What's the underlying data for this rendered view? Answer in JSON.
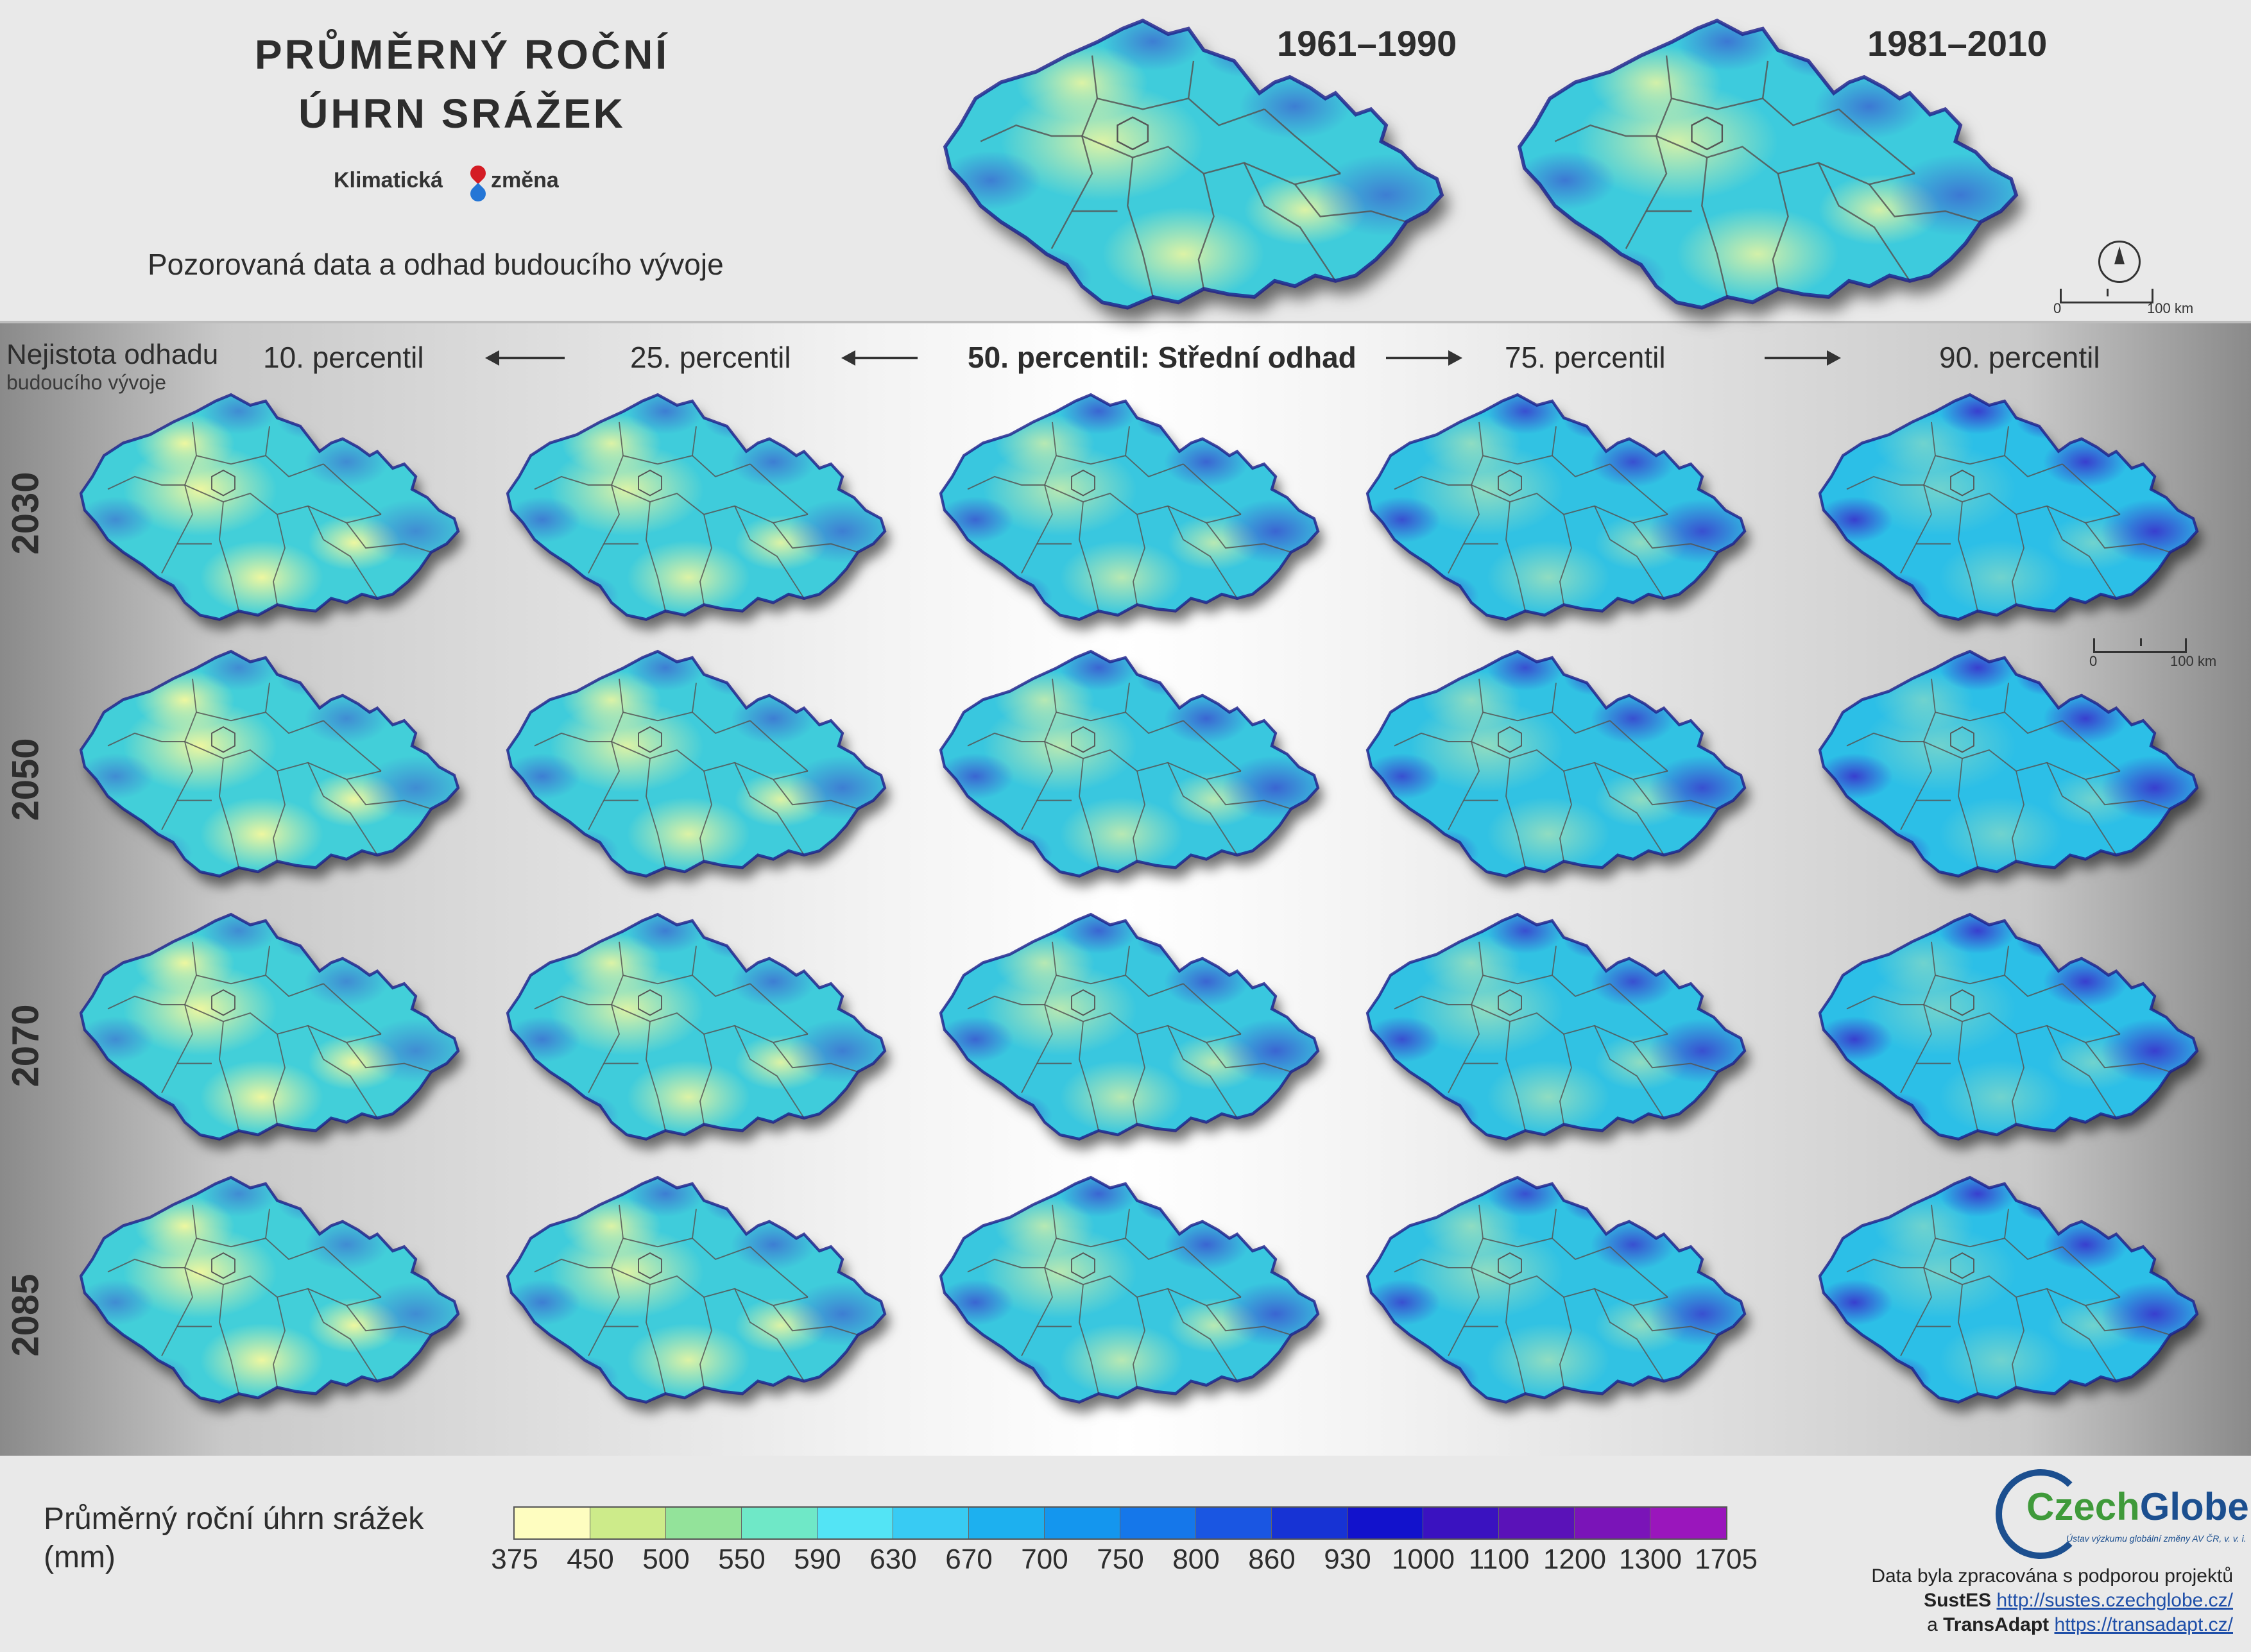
{
  "header": {
    "title_line1": "PRŮMĚRNÝ ROČNÍ",
    "title_line2": "ÚHRN SRÁŽEK",
    "logo_word1": "Klimatická",
    "logo_word2": "změna",
    "subtitle": "Pozorovaná data a odhad budoucího vývoje"
  },
  "observed": [
    {
      "period": "1961–1990",
      "style": "obs1"
    },
    {
      "period": "1981–2010",
      "style": "obs2"
    }
  ],
  "scalebar": {
    "start": "0",
    "end": "100 km"
  },
  "uncertainty": {
    "line1": "Nejistota odhadu",
    "line2": "budoucího vývoje"
  },
  "percentiles": [
    {
      "label": "10. percentil",
      "style": "p10"
    },
    {
      "label": "25. percentil",
      "style": "p25"
    },
    {
      "label": "50. percentil: Střední odhad",
      "style": "p50"
    },
    {
      "label": "75. percentil",
      "style": "p75"
    },
    {
      "label": "90. percentil",
      "style": "p90"
    }
  ],
  "years": [
    "2030",
    "2050",
    "2070",
    "2085"
  ],
  "legend": {
    "title": "Průměrný roční úhrn srážek",
    "unit": "(mm)",
    "breaks": [
      "375",
      "450",
      "500",
      "550",
      "590",
      "630",
      "670",
      "700",
      "750",
      "800",
      "860",
      "930",
      "1000",
      "1100",
      "1200",
      "1300",
      "1705"
    ],
    "colors": [
      "#fefdc0",
      "#cdeb8a",
      "#93e39a",
      "#6fe8c7",
      "#53e4f5",
      "#38cbf3",
      "#1db0ef",
      "#1496ee",
      "#1577ea",
      "#1a56e2",
      "#1733d4",
      "#1212cc",
      "#3a12c0",
      "#5a12b8",
      "#7a14b8",
      "#9a16bc"
    ]
  },
  "footer": {
    "org_part1": "Czech",
    "org_part2": "Globe",
    "org_institute": "Ústav výzkumu globální změny AV ČR, v. v. i.",
    "line1": "Data byla zpracována s podporou projektů",
    "project1_name": "SustES",
    "project1_url": "http://sustes.czechglobe.cz/",
    "connector": "a",
    "project2_name": "TransAdapt",
    "project2_url": "https://transadapt.cz/"
  }
}
